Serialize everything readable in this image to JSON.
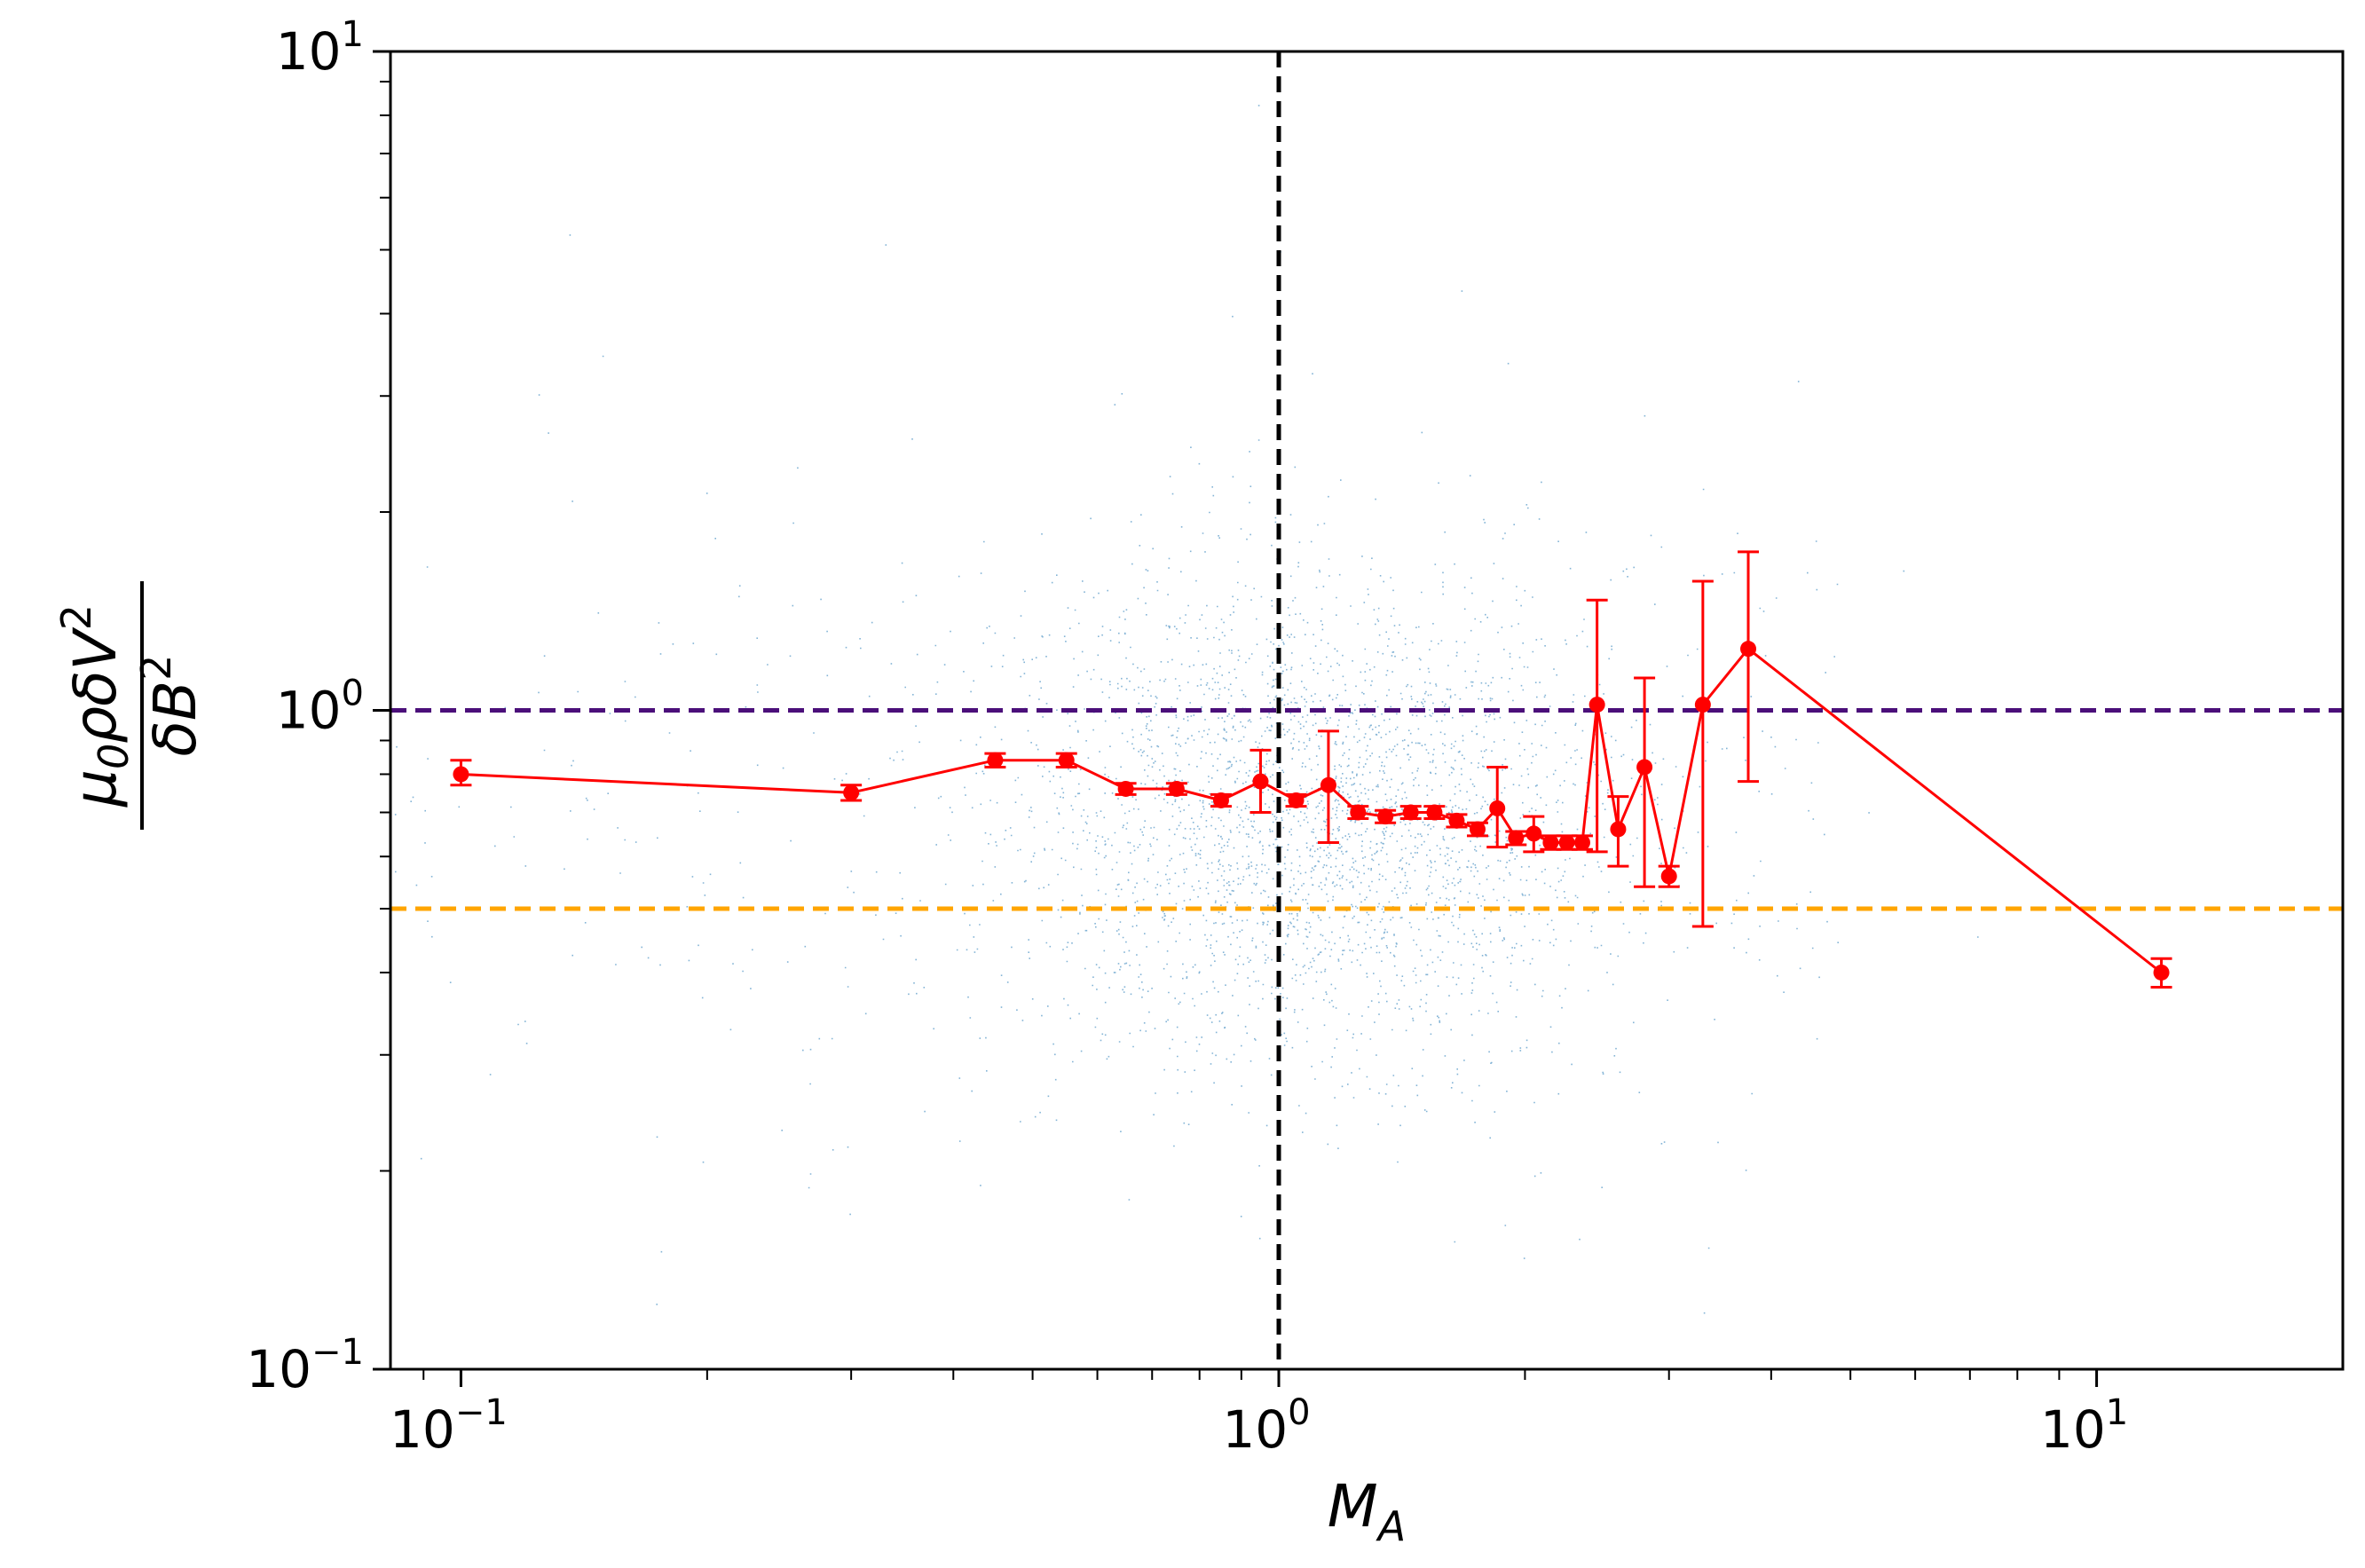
{
  "chart_data": {
    "type": "scatter",
    "xscale": "log",
    "yscale": "log",
    "xlim": [
      0.082,
      20
    ],
    "ylim": [
      0.1,
      10
    ],
    "xlabel": {
      "base": "M",
      "sub": "A"
    },
    "ylabel": {
      "numerator": "μ0ρδV2",
      "denominator": "δB2"
    },
    "x_ticks": [
      {
        "value": 0.1,
        "base": "10",
        "exp": "−1"
      },
      {
        "value": 1,
        "base": "10",
        "exp": "0"
      },
      {
        "value": 10,
        "base": "10",
        "exp": "1"
      }
    ],
    "y_ticks": [
      {
        "value": 0.1,
        "base": "10",
        "exp": "−1"
      },
      {
        "value": 1,
        "base": "10",
        "exp": "0"
      },
      {
        "value": 10,
        "base": "10",
        "exp": "1"
      }
    ],
    "reference_lines": [
      {
        "orientation": "vertical",
        "value": 1.0,
        "color": "#000000",
        "style": "dashed"
      },
      {
        "orientation": "horizontal",
        "value": 1.0,
        "color": "#4b0f7a",
        "style": "dashed"
      },
      {
        "orientation": "horizontal",
        "value": 0.5,
        "color": "#ffa500",
        "style": "dashed"
      }
    ],
    "scatter": {
      "color": "#1f77b4",
      "description": "dense cloud of individual measurements, centred near M_A≈1.1, ratio≈0.7"
    },
    "binned_series": {
      "color": "#ff0000",
      "points": [
        {
          "x": 0.1,
          "y": 0.8,
          "lo": 0.77,
          "hi": 0.84
        },
        {
          "x": 0.3,
          "y": 0.75,
          "lo": 0.73,
          "hi": 0.77
        },
        {
          "x": 0.45,
          "y": 0.84,
          "lo": 0.82,
          "hi": 0.86
        },
        {
          "x": 0.55,
          "y": 0.84,
          "lo": 0.82,
          "hi": 0.86
        },
        {
          "x": 0.65,
          "y": 0.76,
          "lo": 0.745,
          "hi": 0.775
        },
        {
          "x": 0.75,
          "y": 0.76,
          "lo": 0.745,
          "hi": 0.775
        },
        {
          "x": 0.85,
          "y": 0.73,
          "lo": 0.715,
          "hi": 0.745
        },
        {
          "x": 0.95,
          "y": 0.78,
          "lo": 0.7,
          "hi": 0.87
        },
        {
          "x": 1.05,
          "y": 0.73,
          "lo": 0.715,
          "hi": 0.745
        },
        {
          "x": 1.15,
          "y": 0.77,
          "lo": 0.63,
          "hi": 0.93
        },
        {
          "x": 1.25,
          "y": 0.7,
          "lo": 0.685,
          "hi": 0.715
        },
        {
          "x": 1.35,
          "y": 0.69,
          "lo": 0.675,
          "hi": 0.705
        },
        {
          "x": 1.45,
          "y": 0.7,
          "lo": 0.685,
          "hi": 0.715
        },
        {
          "x": 1.55,
          "y": 0.7,
          "lo": 0.685,
          "hi": 0.715
        },
        {
          "x": 1.65,
          "y": 0.68,
          "lo": 0.665,
          "hi": 0.695
        },
        {
          "x": 1.75,
          "y": 0.66,
          "lo": 0.645,
          "hi": 0.675
        },
        {
          "x": 1.85,
          "y": 0.71,
          "lo": 0.62,
          "hi": 0.82
        },
        {
          "x": 1.95,
          "y": 0.64,
          "lo": 0.625,
          "hi": 0.655
        },
        {
          "x": 2.05,
          "y": 0.65,
          "lo": 0.61,
          "hi": 0.69
        },
        {
          "x": 2.15,
          "y": 0.63,
          "lo": 0.615,
          "hi": 0.645
        },
        {
          "x": 2.25,
          "y": 0.63,
          "lo": 0.615,
          "hi": 0.645
        },
        {
          "x": 2.35,
          "y": 0.63,
          "lo": 0.615,
          "hi": 0.645
        },
        {
          "x": 2.45,
          "y": 1.02,
          "lo": 0.61,
          "hi": 1.47
        },
        {
          "x": 2.6,
          "y": 0.66,
          "lo": 0.58,
          "hi": 0.74
        },
        {
          "x": 2.8,
          "y": 0.82,
          "lo": 0.54,
          "hi": 1.12
        },
        {
          "x": 3.0,
          "y": 0.56,
          "lo": 0.54,
          "hi": 0.58
        },
        {
          "x": 3.3,
          "y": 1.02,
          "lo": 0.47,
          "hi": 1.57
        },
        {
          "x": 3.75,
          "y": 1.24,
          "lo": 0.78,
          "hi": 1.74
        },
        {
          "x": 12.0,
          "y": 0.4,
          "lo": 0.38,
          "hi": 0.42
        }
      ]
    }
  }
}
